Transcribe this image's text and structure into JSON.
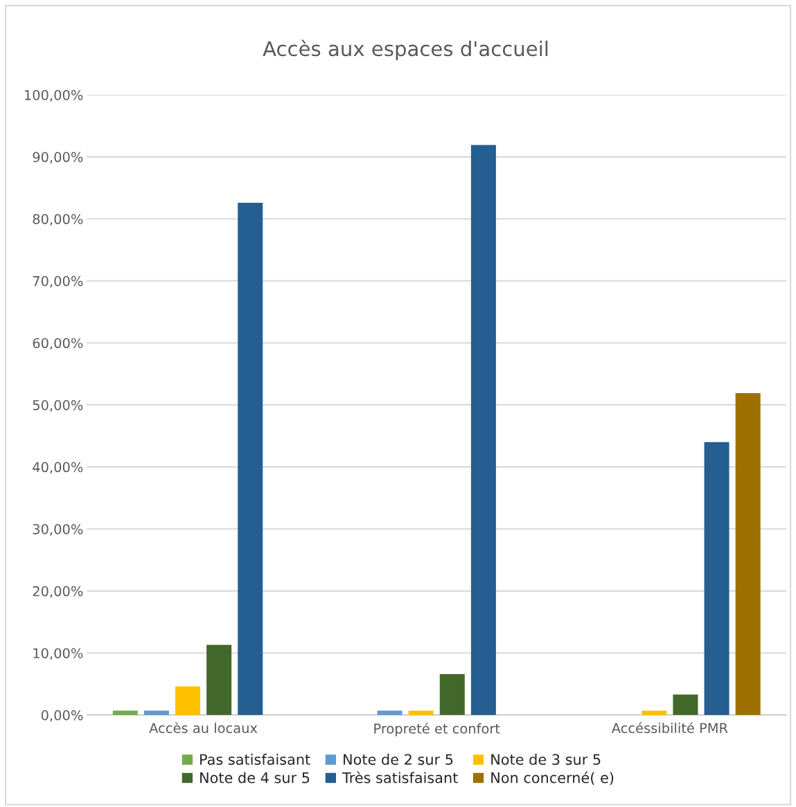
{
  "chart_data": {
    "type": "bar",
    "title": "Accès aux espaces d'accueil",
    "categories": [
      "Accès au locaux",
      "Propreté et confort",
      "Accéssibilité PMR"
    ],
    "series": [
      {
        "name": "Pas satisfaisant",
        "color": "#70ad47",
        "values": [
          0.7,
          null,
          null
        ]
      },
      {
        "name": "Note de 2 sur 5",
        "color": "#5b9bd5",
        "values": [
          0.7,
          0.7,
          null
        ]
      },
      {
        "name": "Note de 3 sur 5",
        "color": "#ffc000",
        "values": [
          4.6,
          0.7,
          0.7
        ]
      },
      {
        "name": "Note de 4 sur 5",
        "color": "#43682b",
        "values": [
          11.3,
          6.6,
          3.3
        ]
      },
      {
        "name": "Très satisfaisant",
        "color": "#255e91",
        "values": [
          82.6,
          91.9,
          44.0
        ]
      },
      {
        "name": "Non concerné( e)",
        "color": "#9e7000",
        "values": [
          null,
          null,
          51.9
        ]
      }
    ],
    "ylim": [
      0,
      100
    ],
    "yticks": [
      {
        "value": 0,
        "label": "0,00%"
      },
      {
        "value": 10,
        "label": "10,00%"
      },
      {
        "value": 20,
        "label": "20,00%"
      },
      {
        "value": 30,
        "label": "30,00%"
      },
      {
        "value": 40,
        "label": "40,00%"
      },
      {
        "value": 50,
        "label": "50,00%"
      },
      {
        "value": 60,
        "label": "60,00%"
      },
      {
        "value": 70,
        "label": "70,00%"
      },
      {
        "value": 80,
        "label": "80,00%"
      },
      {
        "value": 90,
        "label": "90,00%"
      },
      {
        "value": 100,
        "label": "100,00%"
      }
    ],
    "grid": "y",
    "legend": "bottom"
  }
}
